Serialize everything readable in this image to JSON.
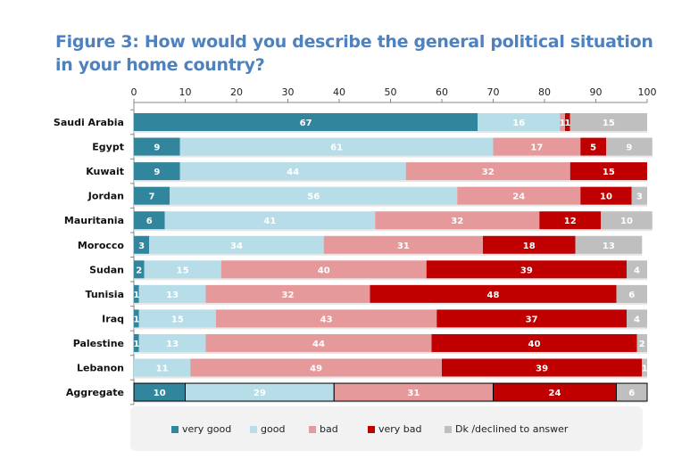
{
  "chart_data": {
    "type": "bar",
    "orientation": "horizontal",
    "stacked": true,
    "title": "Figure 3: How would you describe the general political situation in your home country?",
    "xlabel": "",
    "ylabel": "",
    "xlim": [
      0,
      100
    ],
    "x_ticks": [
      "0",
      "10",
      "20",
      "30",
      "40",
      "50",
      "60",
      "70",
      "80",
      "90",
      "100"
    ],
    "grid": false,
    "legend_position": "bottom",
    "categories": [
      "Saudi Arabia",
      "Egypt",
      "Kuwait",
      "Jordan",
      "Mauritania",
      "Morocco",
      "Sudan",
      "Tunisia",
      "Iraq",
      "Palestine",
      "Lebanon",
      "Aggregate"
    ],
    "series": [
      {
        "name": "very good",
        "color": "#31859C",
        "values": [
          67,
          9,
          9,
          7,
          6,
          3,
          2,
          1,
          1,
          1,
          0,
          10
        ]
      },
      {
        "name": "good",
        "color": "#B7DDE8",
        "values": [
          16,
          61,
          44,
          56,
          41,
          34,
          15,
          13,
          15,
          13,
          11,
          29
        ]
      },
      {
        "name": "bad",
        "color": "#E6999A",
        "values": [
          1,
          17,
          32,
          24,
          32,
          31,
          40,
          32,
          43,
          44,
          49,
          31
        ]
      },
      {
        "name": "very bad",
        "color": "#C00000",
        "values": [
          1,
          5,
          15,
          10,
          12,
          18,
          39,
          48,
          37,
          40,
          39,
          24
        ]
      },
      {
        "name": "Dk /declined to answer",
        "color": "#BFBFBF",
        "values": [
          15,
          9,
          0,
          3,
          10,
          13,
          4,
          6,
          4,
          2,
          1,
          6
        ]
      }
    ]
  }
}
